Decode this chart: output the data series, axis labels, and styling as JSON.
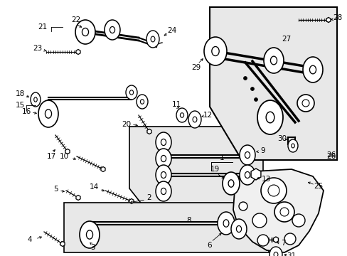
{
  "bg_color": "#ffffff",
  "light_bg": "#e8e8e8",
  "line_color": "#000000",
  "fig_w": 4.89,
  "fig_h": 3.6,
  "dpi": 100
}
